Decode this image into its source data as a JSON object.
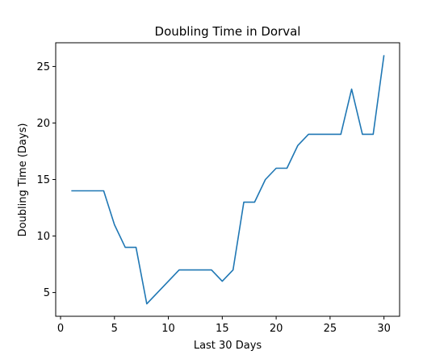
{
  "chart_data": {
    "type": "line",
    "title": "Doubling Time in  Dorval",
    "xlabel": "Last 30 Days",
    "ylabel": "Doubling Time (Days)",
    "xlim": [
      -0.45,
      31.45
    ],
    "ylim": [
      2.9,
      27.1
    ],
    "xticks": [
      0,
      5,
      10,
      15,
      20,
      25,
      30
    ],
    "yticks": [
      5,
      10,
      15,
      20,
      25
    ],
    "grid": false,
    "series": [
      {
        "color": "#1f77b4",
        "x": [
          1,
          2,
          3,
          4,
          5,
          6,
          7,
          8,
          9,
          10,
          11,
          12,
          13,
          14,
          15,
          16,
          17,
          18,
          19,
          20,
          21,
          22,
          23,
          24,
          25,
          26,
          27,
          28,
          29,
          30
        ],
        "y": [
          14,
          14,
          14,
          14,
          11,
          9,
          9,
          4,
          5,
          6,
          7,
          7,
          7,
          7,
          6,
          7,
          13,
          13,
          15,
          16,
          16,
          18,
          19,
          19,
          19,
          19,
          23,
          19,
          19,
          26
        ]
      }
    ]
  }
}
